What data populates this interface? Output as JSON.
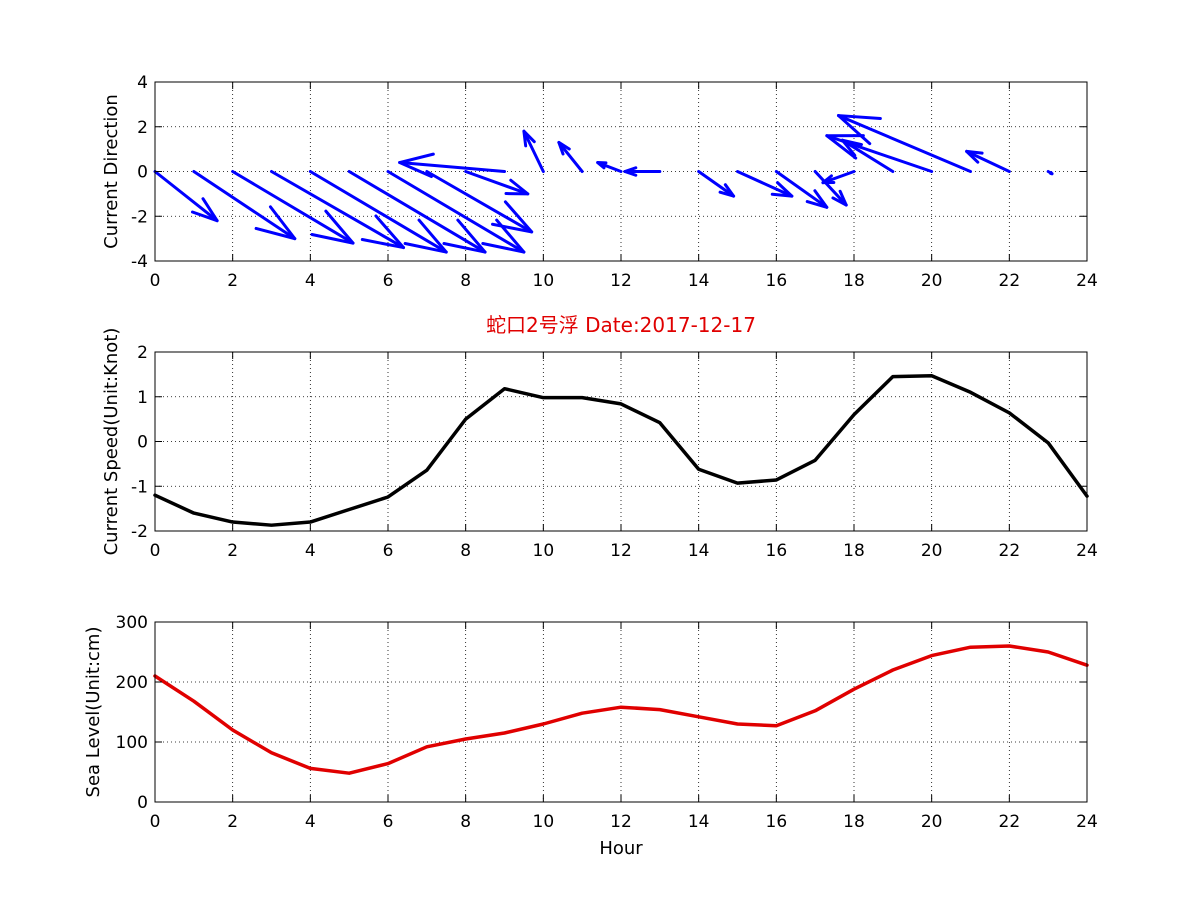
{
  "chart_data": [
    {
      "type": "quiver",
      "name": "direction",
      "ylabel": "Current Direction",
      "xlim": [
        0,
        24
      ],
      "ylim": [
        -4,
        4
      ],
      "xticks": [
        0,
        2,
        4,
        6,
        8,
        10,
        12,
        14,
        16,
        18,
        20,
        22,
        24
      ],
      "yticks": [
        -4,
        -2,
        0,
        2,
        4
      ],
      "grid": true,
      "color": "#0000ff",
      "x": [
        0,
        1,
        2,
        3,
        4,
        5,
        6,
        7,
        8,
        9,
        10,
        11,
        12,
        13,
        14,
        15,
        16,
        17,
        18,
        19,
        20,
        21,
        22,
        23
      ],
      "u": [
        1.6,
        2.6,
        3.1,
        3.4,
        3.5,
        3.5,
        3.5,
        2.7,
        1.6,
        -2.7,
        -0.5,
        -0.6,
        -0.6,
        -0.9,
        0.9,
        1.4,
        1.3,
        0.8,
        -0.8,
        -1.3,
        -2.7,
        -3.4,
        -1.1,
        0.1
      ],
      "v": [
        -2.2,
        -3.0,
        -3.2,
        -3.4,
        -3.6,
        -3.6,
        -3.6,
        -2.7,
        -1.0,
        0.4,
        1.8,
        1.3,
        0.4,
        0.0,
        -1.1,
        -1.1,
        -1.6,
        -1.5,
        -0.5,
        1.4,
        1.6,
        2.5,
        0.9,
        -0.1
      ]
    },
    {
      "type": "line",
      "name": "speed",
      "title": "蛇口2号浮    Date:2017-12-17",
      "ylabel": "Current Speed(Unit:Knot)",
      "xlim": [
        0,
        24
      ],
      "ylim": [
        -2,
        2
      ],
      "xticks": [
        0,
        2,
        4,
        6,
        8,
        10,
        12,
        14,
        16,
        18,
        20,
        22,
        24
      ],
      "yticks": [
        -2,
        -1,
        0,
        1,
        2
      ],
      "grid": true,
      "color": "#000000",
      "x": [
        0,
        1,
        2,
        3,
        4,
        5,
        6,
        7,
        8,
        9,
        10,
        11,
        12,
        13,
        14,
        15,
        16,
        17,
        18,
        19,
        20,
        21,
        22,
        23,
        24
      ],
      "y": [
        -1.2,
        -1.6,
        -1.8,
        -1.87,
        -1.8,
        -1.52,
        -1.24,
        -0.64,
        0.5,
        1.18,
        0.98,
        0.98,
        0.84,
        0.42,
        -0.62,
        -0.93,
        -0.86,
        -0.42,
        0.6,
        1.45,
        1.47,
        1.1,
        0.64,
        -0.03,
        -1.22
      ]
    },
    {
      "type": "line",
      "name": "sealevel",
      "ylabel": "Sea Level(Unit:cm)",
      "xlabel": "Hour",
      "xlim": [
        0,
        24
      ],
      "ylim": [
        0,
        300
      ],
      "xticks": [
        0,
        2,
        4,
        6,
        8,
        10,
        12,
        14,
        16,
        18,
        20,
        22,
        24
      ],
      "yticks": [
        0,
        100,
        200,
        300
      ],
      "grid": true,
      "color": "#e00000",
      "x": [
        0,
        1,
        2,
        3,
        4,
        5,
        6,
        7,
        8,
        9,
        10,
        11,
        12,
        13,
        14,
        15,
        16,
        17,
        18,
        19,
        20,
        21,
        22,
        23,
        24
      ],
      "y": [
        210,
        168,
        120,
        82,
        56,
        48,
        64,
        92,
        105,
        115,
        130,
        148,
        158,
        154,
        142,
        130,
        127,
        152,
        188,
        220,
        244,
        258,
        260,
        250,
        228
      ]
    }
  ]
}
